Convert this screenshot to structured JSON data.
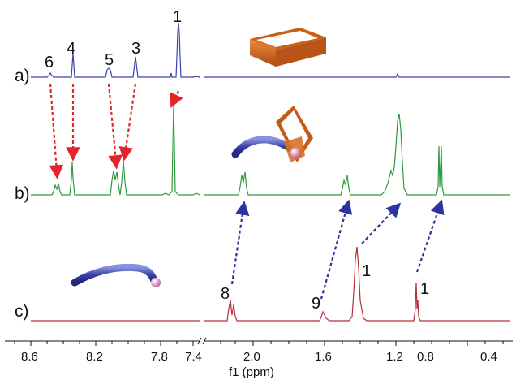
{
  "spectra": [
    {
      "key": "a",
      "label": "a)",
      "color": "#3b43a8"
    },
    {
      "key": "b",
      "label": "b)",
      "color": "#2f9a3e"
    },
    {
      "key": "c",
      "label": "c)",
      "color": "#b5303a"
    }
  ],
  "peak_labels": {
    "a": [
      "6",
      "4",
      "5",
      "3",
      "1"
    ],
    "c": [
      "8",
      "9",
      "1",
      "1"
    ]
  },
  "x_axis": {
    "title": "f1 (ppm)",
    "left_ticks": [
      "8.6",
      "8.2",
      "7.8",
      "7.4"
    ],
    "right_ticks": [
      "2.0",
      "1.6",
      "1.2",
      "0.8",
      "0.4"
    ]
  },
  "colors": {
    "red_arrow": "#e0262b",
    "blue_arrow": "#2a33a0",
    "cage": "#d2691e",
    "axle": "#4a4fb8",
    "stopper": "#e8a6cf"
  }
}
